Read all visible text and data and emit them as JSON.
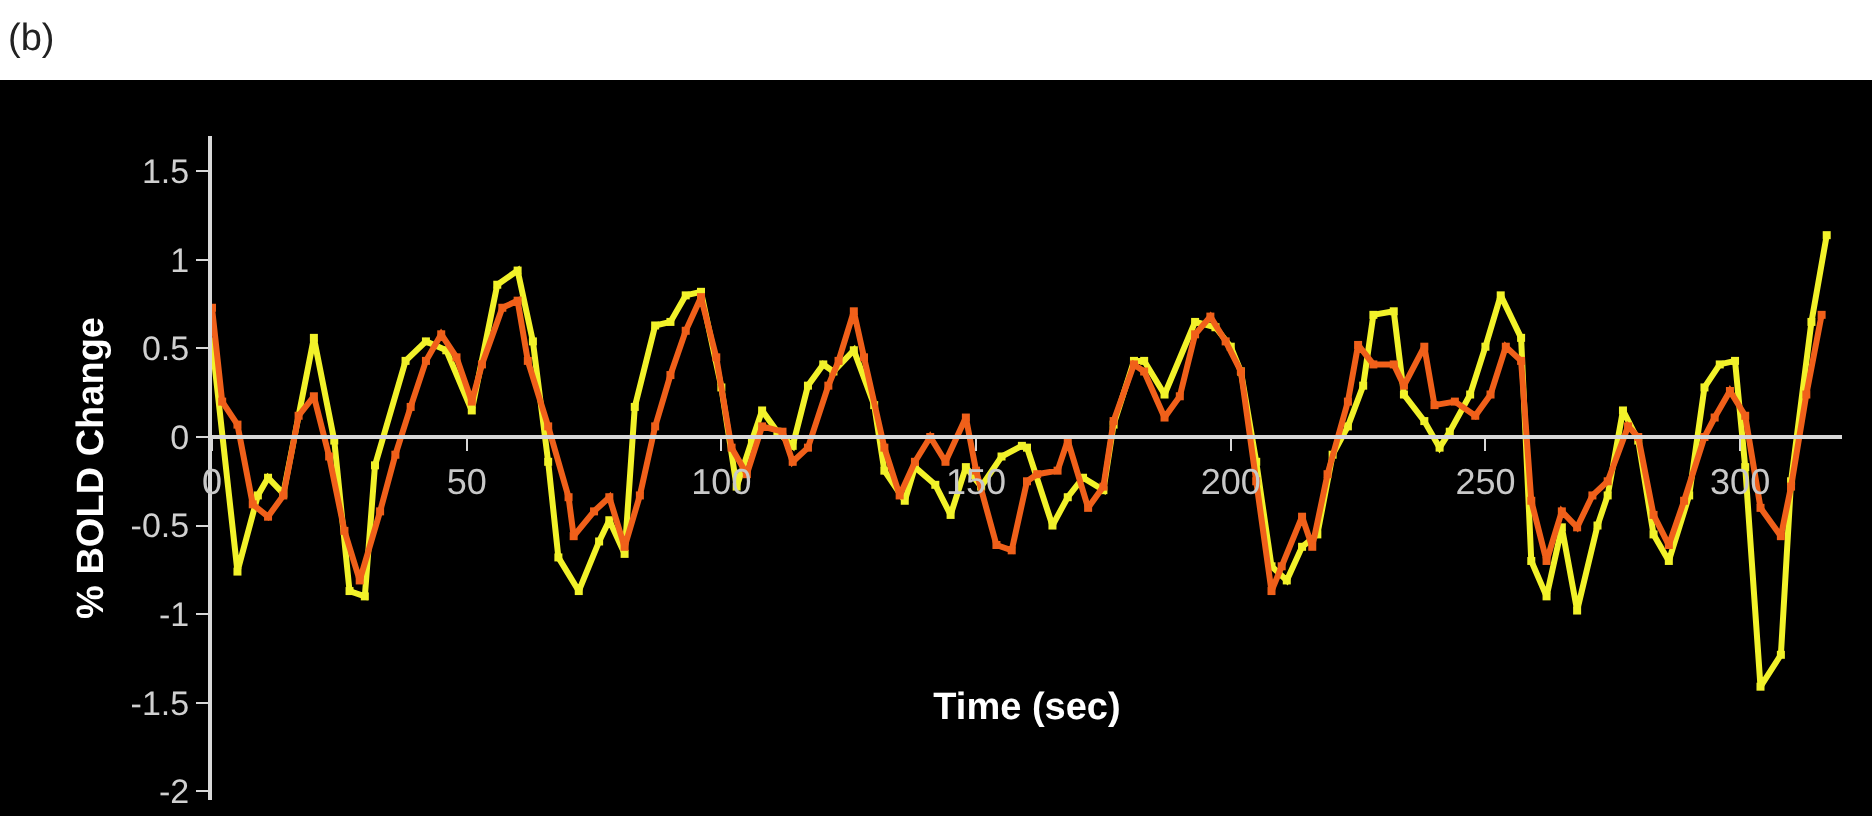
{
  "chart_data": {
    "type": "line",
    "title": "(b)",
    "xlabel": "Time (sec)",
    "ylabel": "% BOLD Change",
    "xlim": [
      0,
      320
    ],
    "xticks": [
      0,
      50,
      100,
      150,
      200,
      250,
      300
    ],
    "ylim": [
      -2.05,
      1.7
    ],
    "yticks": [
      -2,
      -1.5,
      -1,
      -0.5,
      0,
      0.5,
      1,
      1.5
    ],
    "grid": false,
    "marker": "square",
    "line_style": "solid",
    "series": [
      {
        "color": "#f2f22a",
        "x": [
          0,
          5,
          9,
          11,
          14,
          20,
          24,
          27,
          30,
          32,
          38,
          42,
          46,
          51,
          56,
          60,
          63,
          66,
          68,
          72,
          76,
          78,
          81,
          83,
          87,
          90,
          93,
          96,
          100,
          103,
          106,
          108,
          111,
          114,
          117,
          120,
          122,
          126,
          130,
          132,
          136,
          138,
          142,
          145,
          148,
          151,
          155,
          159,
          160,
          165,
          168,
          171,
          175,
          177,
          181,
          183,
          187,
          193,
          197,
          200,
          202,
          205,
          208,
          211,
          214,
          217,
          220,
          223,
          226,
          228,
          232,
          234,
          238,
          241,
          243,
          247,
          250,
          253,
          257,
          259,
          262,
          265,
          268,
          272,
          274,
          277,
          280,
          283,
          286,
          290,
          293,
          296,
          299,
          301,
          304,
          308,
          310,
          314,
          317
        ],
        "values": [
          0.54,
          -0.76,
          -0.33,
          -0.23,
          -0.32,
          0.56,
          -0.02,
          -0.87,
          -0.9,
          -0.16,
          0.43,
          0.54,
          0.49,
          0.15,
          0.86,
          0.94,
          0.54,
          -0.14,
          -0.68,
          -0.87,
          -0.59,
          -0.47,
          -0.66,
          0.17,
          0.63,
          0.65,
          0.8,
          0.82,
          0.28,
          -0.28,
          -0.02,
          0.15,
          0.03,
          -0.05,
          0.29,
          0.41,
          0.37,
          0.49,
          0.18,
          -0.19,
          -0.36,
          -0.17,
          -0.27,
          -0.44,
          -0.17,
          -0.28,
          -0.11,
          -0.05,
          -0.06,
          -0.5,
          -0.34,
          -0.23,
          -0.3,
          0.07,
          0.43,
          0.43,
          0.24,
          0.65,
          0.62,
          0.51,
          0.37,
          -0.14,
          -0.73,
          -0.81,
          -0.62,
          -0.55,
          -0.1,
          0.06,
          0.29,
          0.69,
          0.71,
          0.24,
          0.09,
          -0.06,
          0.03,
          0.24,
          0.51,
          0.8,
          0.56,
          -0.7,
          -0.9,
          -0.51,
          -0.98,
          -0.5,
          -0.33,
          0.15,
          -0.02,
          -0.55,
          -0.7,
          -0.33,
          0.28,
          0.41,
          0.43,
          -0.17,
          -1.41,
          -1.23,
          -0.25,
          0.65,
          1.14
        ]
      },
      {
        "color": "#f0601a",
        "x": [
          0,
          2,
          5,
          8,
          11,
          14,
          17,
          20,
          23,
          26,
          29,
          33,
          36,
          39,
          42,
          45,
          48,
          51,
          53,
          57,
          60,
          62,
          66,
          70,
          71,
          75,
          78,
          81,
          84,
          87,
          90,
          93,
          96,
          99,
          102,
          105,
          108,
          112,
          114,
          117,
          121,
          123,
          126,
          128,
          132,
          135,
          138,
          141,
          144,
          148,
          150,
          154,
          157,
          160,
          162,
          166,
          168,
          172,
          175,
          177,
          181,
          183,
          187,
          190,
          193,
          196,
          199,
          202,
          205,
          208,
          210,
          214,
          216,
          219,
          223,
          225,
          228,
          232,
          234,
          238,
          240,
          244,
          248,
          251,
          254,
          257,
          259,
          262,
          265,
          268,
          271,
          274,
          278,
          280,
          283,
          286,
          289,
          293,
          295,
          298,
          301,
          304,
          308,
          310,
          313,
          316
        ],
        "values": [
          0.73,
          0.2,
          0.07,
          -0.38,
          -0.45,
          -0.33,
          0.12,
          0.23,
          -0.11,
          -0.53,
          -0.81,
          -0.42,
          -0.1,
          0.17,
          0.43,
          0.58,
          0.45,
          0.2,
          0.41,
          0.73,
          0.77,
          0.43,
          0.06,
          -0.34,
          -0.56,
          -0.42,
          -0.34,
          -0.62,
          -0.33,
          0.06,
          0.35,
          0.6,
          0.79,
          0.45,
          -0.06,
          -0.21,
          0.06,
          0.03,
          -0.14,
          -0.06,
          0.29,
          0.43,
          0.71,
          0.45,
          -0.06,
          -0.33,
          -0.14,
          0.0,
          -0.14,
          0.11,
          -0.19,
          -0.61,
          -0.64,
          -0.25,
          -0.21,
          -0.19,
          -0.02,
          -0.4,
          -0.28,
          0.09,
          0.41,
          0.37,
          0.11,
          0.23,
          0.58,
          0.68,
          0.54,
          0.37,
          -0.25,
          -0.87,
          -0.73,
          -0.45,
          -0.62,
          -0.21,
          0.2,
          0.52,
          0.41,
          0.41,
          0.29,
          0.51,
          0.18,
          0.2,
          0.12,
          0.24,
          0.51,
          0.43,
          -0.36,
          -0.7,
          -0.42,
          -0.51,
          -0.33,
          -0.25,
          0.06,
          0.0,
          -0.44,
          -0.61,
          -0.36,
          0.0,
          0.11,
          0.26,
          0.12,
          -0.4,
          -0.56,
          -0.28,
          0.24,
          0.69
        ]
      }
    ]
  }
}
